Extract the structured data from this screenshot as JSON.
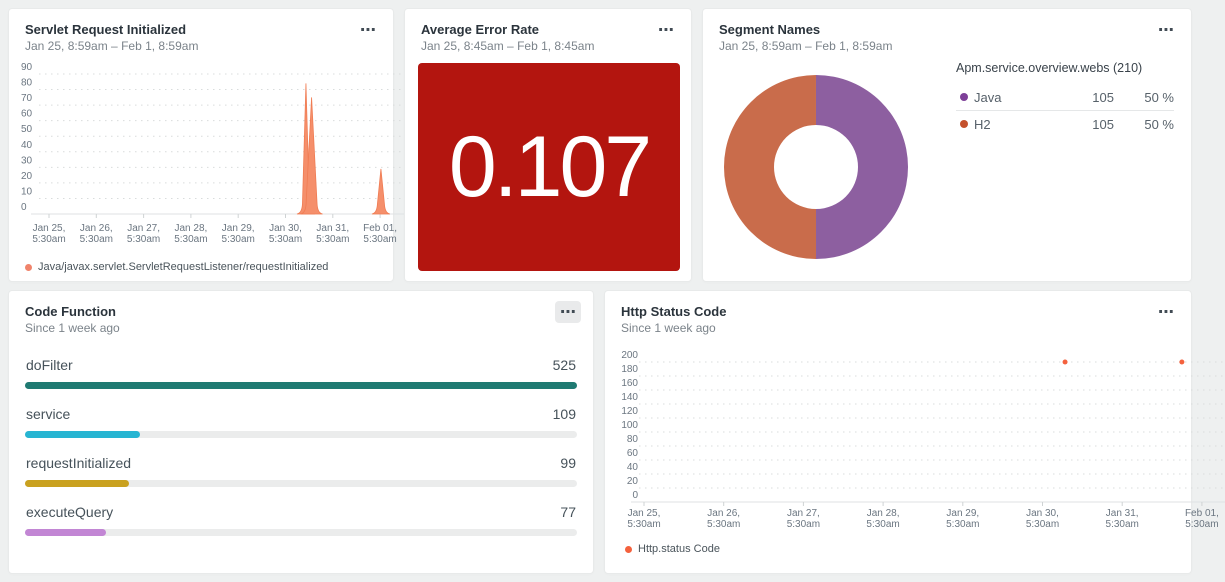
{
  "page": {
    "background": "#eef0f0"
  },
  "icons": {
    "more_options_glyph": "⋯"
  },
  "cards": {
    "servlet": {
      "title": "Servlet Request Initialized",
      "subtitle": "Jan 25, 8:59am – Feb 1, 8:59am"
    },
    "error_rate": {
      "title": "Average Error Rate",
      "subtitle": "Jan 25, 8:45am – Feb 1, 8:45am",
      "value": "0.107",
      "bg_color": "#b3150f"
    },
    "segment": {
      "title": "Segment Names",
      "subtitle": "Jan 25, 8:59am – Feb 1, 8:59am",
      "table_header": "Apm.service.overview.webs (210)"
    },
    "code_function": {
      "title": "Code Function",
      "subtitle": "Since 1 week ago"
    },
    "http_status": {
      "title": "Http Status Code",
      "subtitle": "Since 1 week ago"
    }
  },
  "chart_data": [
    {
      "id": "servlet",
      "type": "area",
      "title": "Servlet Request Initialized",
      "time_range": "Jan 25, 8:59am – Feb 1, 8:59am",
      "ylim": [
        0,
        90
      ],
      "y_ticks": [
        0,
        10,
        20,
        30,
        40,
        50,
        60,
        70,
        80,
        90
      ],
      "x_ticks": [
        [
          "Jan 25,",
          "5:30am"
        ],
        [
          "Jan 26,",
          "5:30am"
        ],
        [
          "Jan 27,",
          "5:30am"
        ],
        [
          "Jan 28,",
          "5:30am"
        ],
        [
          "Jan 29,",
          "5:30am"
        ],
        [
          "Jan 30,",
          "5:30am"
        ],
        [
          "Jan 31,",
          "5:30am"
        ],
        [
          "Feb 01,",
          "5:30am"
        ]
      ],
      "grid": "dotted",
      "legend_position": "bottom",
      "series": [
        {
          "name": "Java/javax.servlet.ServletRequestListener/requestInitialized",
          "color": "#f58f6b",
          "stroke": "#f07c53",
          "legend_dot": "#f0836b"
        }
      ],
      "points": [
        {
          "x": "Jan 30, ~2:30pm",
          "x_frac": 0.747,
          "value": 84
        },
        {
          "x": "Jan 30, ~5:30pm",
          "x_frac": 0.763,
          "value": 75
        },
        {
          "x": "Feb 1, ~3:30am",
          "x_frac": 0.96,
          "value": 29
        }
      ]
    },
    {
      "id": "error_rate",
      "type": "billboard",
      "title": "Average Error Rate",
      "time_range": "Jan 25, 8:45am – Feb 1, 8:45am",
      "value": 0.107,
      "display": "0.107",
      "status_color": "#b3150f"
    },
    {
      "id": "segment",
      "type": "pie",
      "title": "Segment Names",
      "time_range": "Jan 25, 8:59am – Feb 1, 8:59am",
      "label": "Apm.service.overview.webs (210)",
      "total": 210,
      "slices": [
        {
          "name": "Java",
          "value": 105,
          "percent": "50 %",
          "color": "#8d5fa0",
          "dot": "#7d3f98"
        },
        {
          "name": "H2",
          "value": 105,
          "percent": "50 %",
          "color": "#c96c4b",
          "dot": "#c4512c"
        }
      ]
    },
    {
      "id": "code_function",
      "type": "bar",
      "title": "Code Function",
      "time_range": "Since 1 week ago",
      "max": 525,
      "bars": [
        {
          "label": "doFilter",
          "value": 525,
          "color": "#1f7a72"
        },
        {
          "label": "service",
          "value": 109,
          "color": "#27b5d2"
        },
        {
          "label": "requestInitialized",
          "value": 99,
          "color": "#c9a11f"
        },
        {
          "label": "executeQuery",
          "value": 77,
          "color": "#c286d4"
        }
      ]
    },
    {
      "id": "http_status",
      "type": "scatter",
      "title": "Http Status Code",
      "time_range": "Since 1 week ago",
      "ylim": [
        0,
        200
      ],
      "y_ticks": [
        0,
        20,
        40,
        60,
        80,
        100,
        120,
        140,
        160,
        180,
        200
      ],
      "x_ticks": [
        [
          "Jan 25,",
          "5:30am"
        ],
        [
          "Jan 26,",
          "5:30am"
        ],
        [
          "Jan 27,",
          "5:30am"
        ],
        [
          "Jan 28,",
          "5:30am"
        ],
        [
          "Jan 29,",
          "5:30am"
        ],
        [
          "Jan 30,",
          "5:30am"
        ],
        [
          "Jan 31,",
          "5:30am"
        ],
        [
          "Feb 01,",
          "5:30am"
        ]
      ],
      "grid": "dotted",
      "legend_position": "bottom",
      "series": [
        {
          "name": "Http.status Code",
          "color": "#f4613d",
          "legend_dot": "#f4613d"
        }
      ],
      "points": [
        {
          "x": "Jan 30, ~1:00pm",
          "x_frac": 0.766,
          "value": 200
        },
        {
          "x": "Jan 31, ~11:00pm",
          "x_frac": 0.978,
          "value": 200
        }
      ]
    }
  ]
}
